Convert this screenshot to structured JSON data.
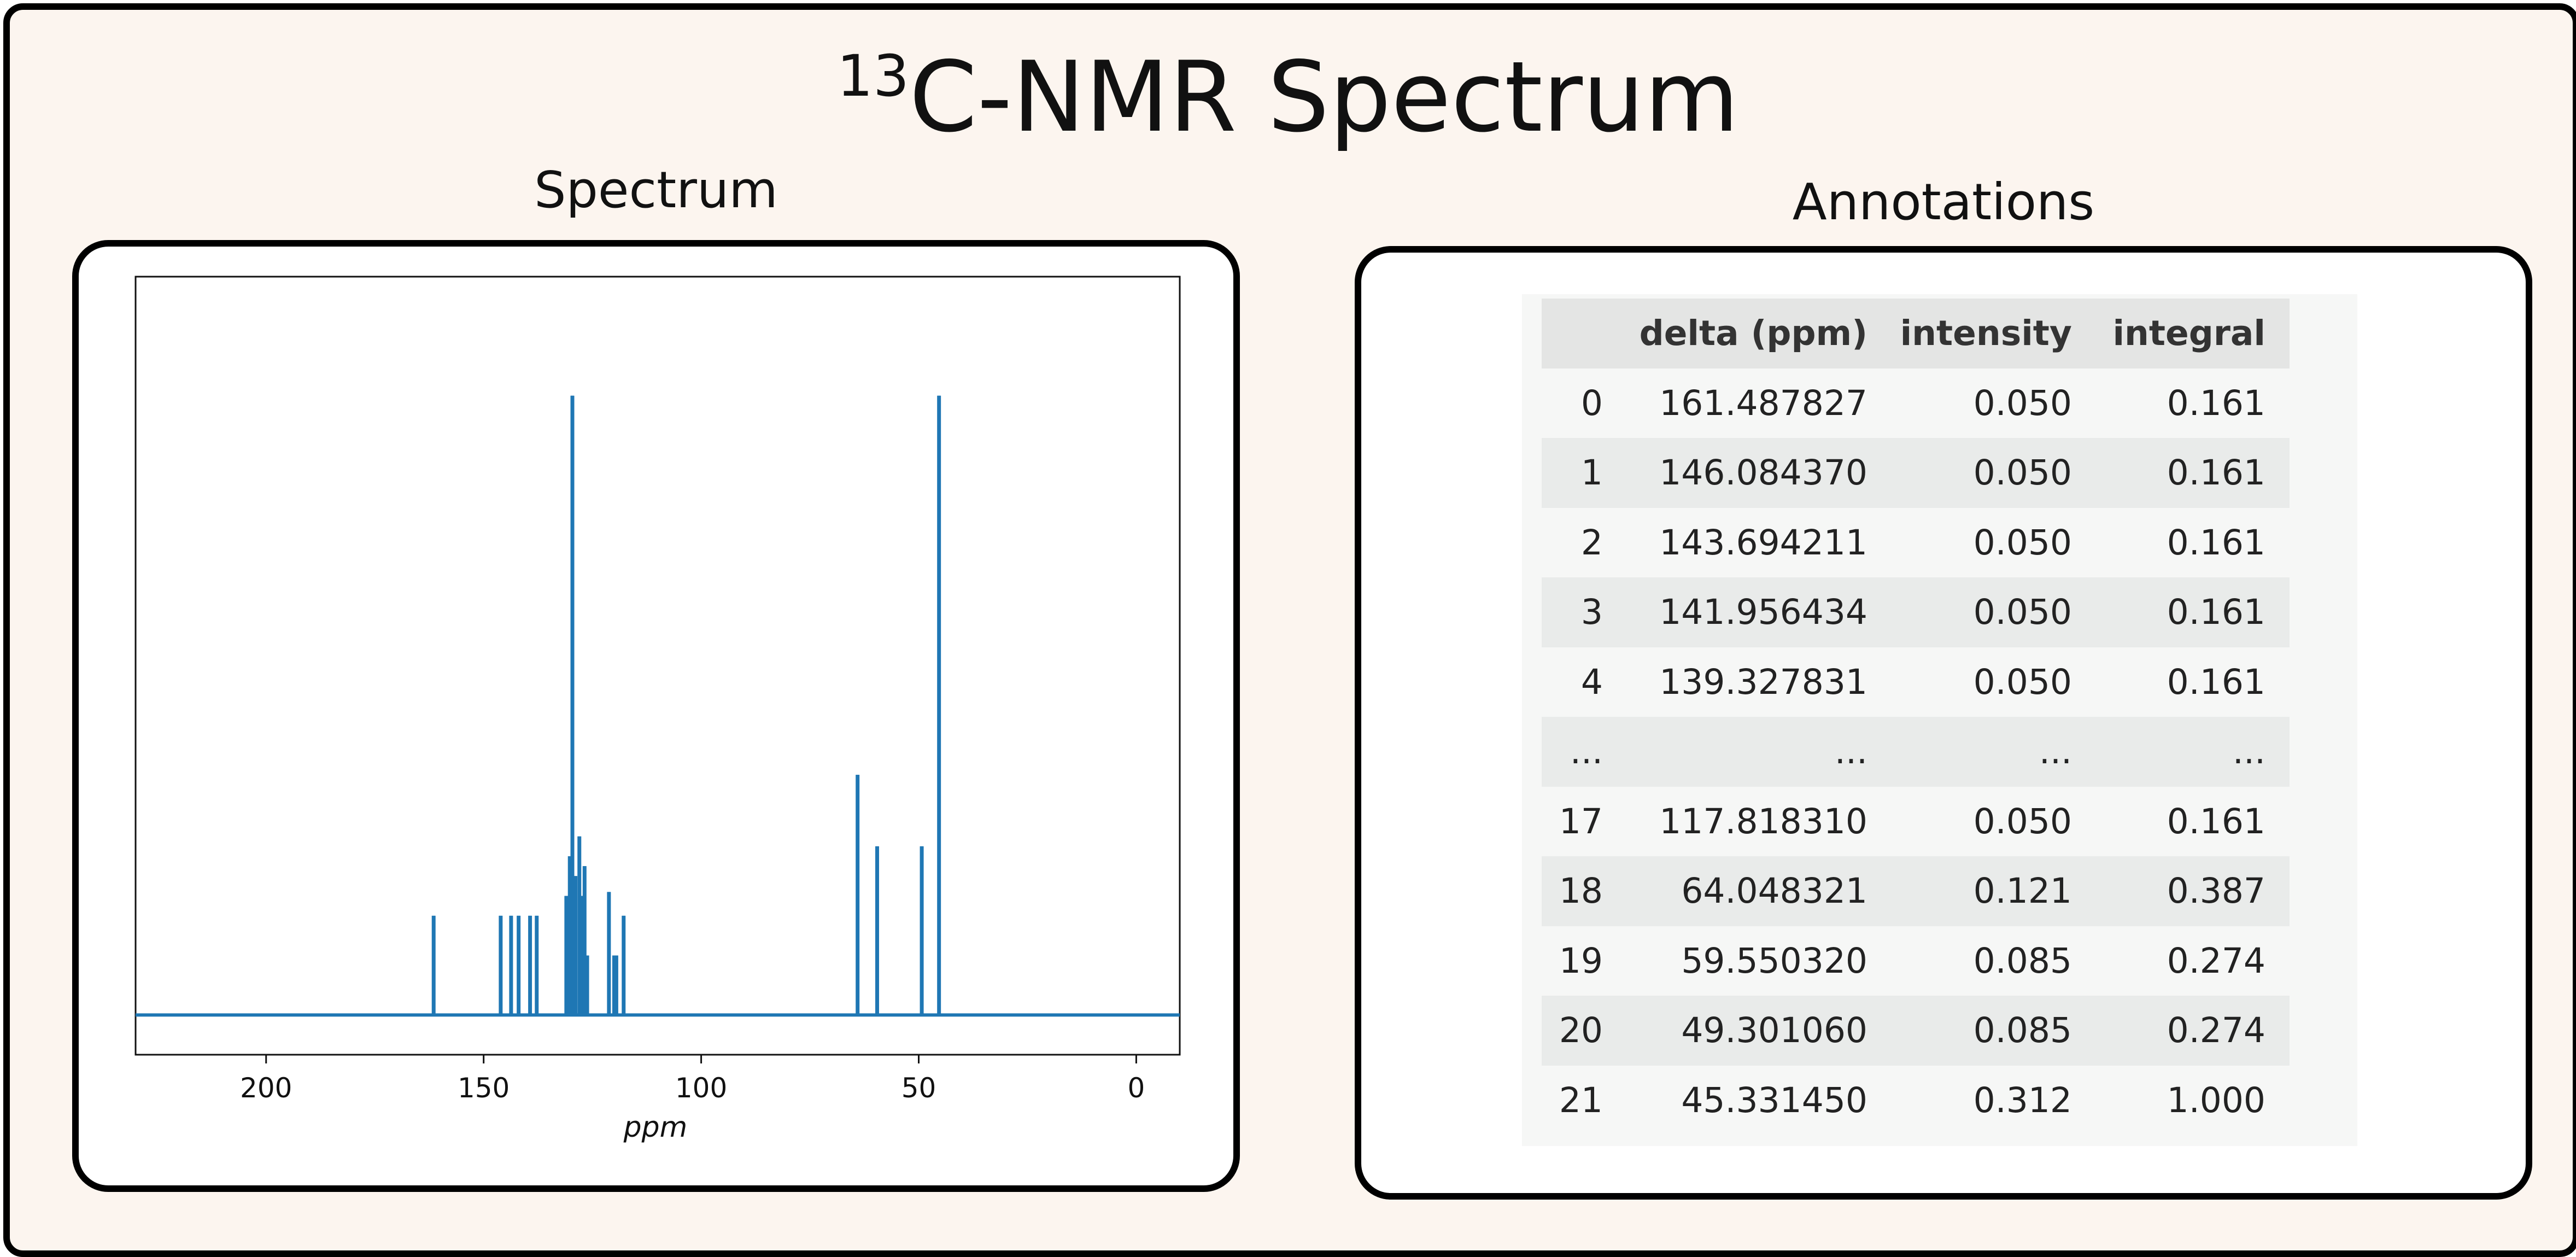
{
  "title": {
    "sup": "13",
    "text": "C-NMR Spectrum"
  },
  "spectrum_panel": {
    "title": "Spectrum"
  },
  "annotations_panel": {
    "title": "Annotations",
    "columns": [
      "",
      "delta (ppm)",
      "intensity",
      "integral"
    ],
    "rows": [
      [
        "0",
        "161.487827",
        "0.050",
        "0.161"
      ],
      [
        "1",
        "146.084370",
        "0.050",
        "0.161"
      ],
      [
        "2",
        "143.694211",
        "0.050",
        "0.161"
      ],
      [
        "3",
        "141.956434",
        "0.050",
        "0.161"
      ],
      [
        "4",
        "139.327831",
        "0.050",
        "0.161"
      ],
      [
        "...",
        "...",
        "...",
        "..."
      ],
      [
        "17",
        "117.818310",
        "0.050",
        "0.161"
      ],
      [
        "18",
        "64.048321",
        "0.121",
        "0.387"
      ],
      [
        "19",
        "59.550320",
        "0.085",
        "0.274"
      ],
      [
        "20",
        "49.301060",
        "0.085",
        "0.274"
      ],
      [
        "21",
        "45.331450",
        "0.312",
        "1.000"
      ]
    ]
  },
  "chart_data": {
    "type": "line",
    "title": "",
    "xlabel": "ppm",
    "ylabel": "",
    "x_reversed": true,
    "xlim": [
      230,
      -10
    ],
    "ylim": [
      -0.02,
      0.372
    ],
    "xticks": [
      200,
      150,
      100,
      50,
      0
    ],
    "grid": false,
    "series": [
      {
        "color": "#1f77b4",
        "peaks": [
          {
            "x": 161.49,
            "y": 0.05
          },
          {
            "x": 146.08,
            "y": 0.05
          },
          {
            "x": 143.69,
            "y": 0.05
          },
          {
            "x": 141.96,
            "y": 0.05
          },
          {
            "x": 139.33,
            "y": 0.05
          },
          {
            "x": 137.8,
            "y": 0.05
          },
          {
            "x": 131.0,
            "y": 0.06
          },
          {
            "x": 130.2,
            "y": 0.08
          },
          {
            "x": 129.6,
            "y": 0.312
          },
          {
            "x": 128.9,
            "y": 0.07
          },
          {
            "x": 128.0,
            "y": 0.09
          },
          {
            "x": 127.5,
            "y": 0.06
          },
          {
            "x": 126.8,
            "y": 0.075
          },
          {
            "x": 126.2,
            "y": 0.03
          },
          {
            "x": 121.2,
            "y": 0.062
          },
          {
            "x": 120.0,
            "y": 0.03
          },
          {
            "x": 119.5,
            "y": 0.03
          },
          {
            "x": 117.82,
            "y": 0.05
          },
          {
            "x": 64.05,
            "y": 0.121
          },
          {
            "x": 59.55,
            "y": 0.085
          },
          {
            "x": 49.3,
            "y": 0.085
          },
          {
            "x": 45.33,
            "y": 0.312
          }
        ]
      }
    ]
  }
}
